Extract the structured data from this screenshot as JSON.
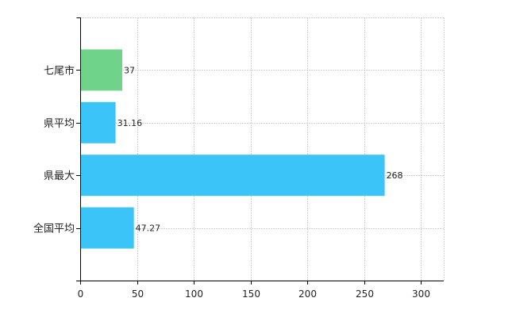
{
  "chart_data": {
    "type": "bar",
    "orientation": "horizontal",
    "categories": [
      "七尾市",
      "県平均",
      "県最大",
      "全国平均"
    ],
    "values": [
      37,
      31.16,
      268,
      47.27
    ],
    "value_labels": [
      "37",
      "31.16",
      "268",
      "47.27"
    ],
    "bar_colors": [
      "#6fd38a",
      "#3ac4f7",
      "#3ac4f7",
      "#3ac4f7"
    ],
    "xlim": [
      0,
      320
    ],
    "x_ticks": [
      0,
      50,
      100,
      150,
      200,
      250,
      300
    ],
    "x_tick_labels": [
      "0",
      "50",
      "100",
      "150",
      "200",
      "250",
      "300"
    ],
    "grid": true,
    "title": "",
    "xlabel": "",
    "ylabel": ""
  }
}
